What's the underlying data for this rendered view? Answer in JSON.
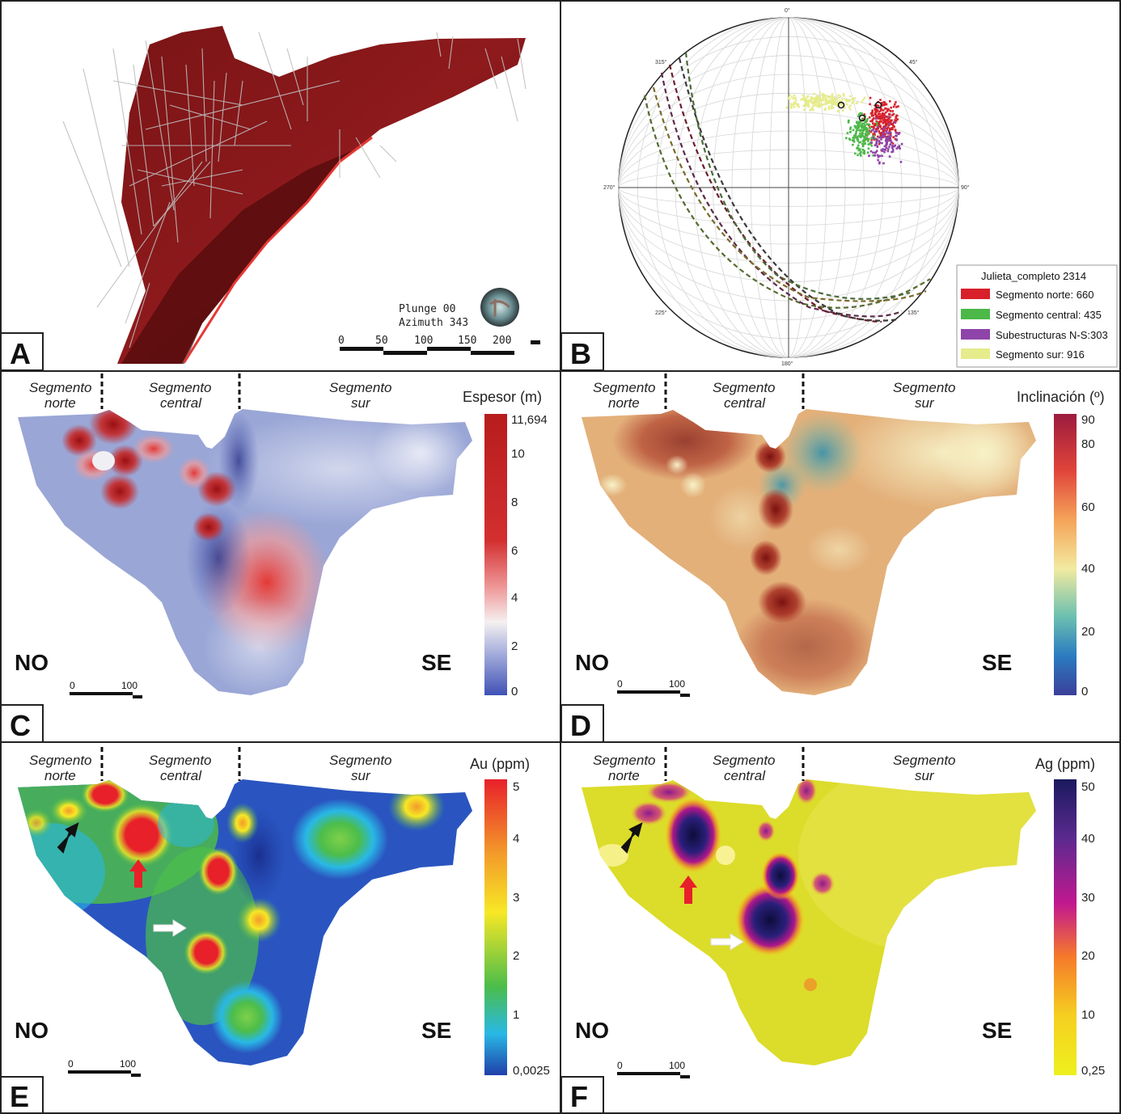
{
  "panels": {
    "A": {
      "letter": "A",
      "plunge_label": "Plunge 00",
      "azimuth_label": "Azimuth 343",
      "scale_ticks": [
        "0",
        "50",
        "100",
        "150",
        "200"
      ]
    },
    "B": {
      "letter": "B",
      "compass": {
        "n": "0°",
        "ne": "45°",
        "e": "90°",
        "se": "135°",
        "s": "180°",
        "sw": "225°",
        "w": "270°",
        "nw": "315°"
      },
      "legend_title": "Julieta_completo 2314",
      "legend": [
        {
          "label": "Segmento norte: 660",
          "color": "#d7202a"
        },
        {
          "label": "Segmento central: 435",
          "color": "#4cb848"
        },
        {
          "label": "Subestructuras N-S:303",
          "color": "#8e44a8"
        },
        {
          "label": "Segmento sur: 916",
          "color": "#e6ec8c"
        }
      ]
    },
    "C": {
      "letter": "C",
      "segments": [
        "Segmento norte",
        "Segmento central",
        "Segmento sur"
      ],
      "left_dir": "NO",
      "right_dir": "SE",
      "scale_ticks": [
        "0",
        "100"
      ],
      "colorbar_title": "Espesor (m)",
      "colorbar_ticks": [
        "11,694",
        "10",
        "8",
        "6",
        "4",
        "2",
        "0"
      ],
      "colorbar_colors": [
        "#b71c1c",
        "#d32f2f",
        "#ef9a9a",
        "#f5f0f0",
        "#9fa8da",
        "#3f51b5"
      ]
    },
    "D": {
      "letter": "D",
      "segments": [
        "Segmento norte",
        "Segmento central",
        "Segmento sur"
      ],
      "left_dir": "NO",
      "right_dir": "SE",
      "scale_ticks": [
        "0",
        "100"
      ],
      "colorbar_title": "Inclinación (º)",
      "colorbar_ticks": [
        "90",
        "80",
        "60",
        "40",
        "20",
        "0"
      ],
      "colorbar_colors": [
        "#9c1b3e",
        "#e0443a",
        "#f5a55a",
        "#f2eaa0",
        "#6cc0b0",
        "#2b7bc0",
        "#3a3f9a"
      ]
    },
    "E": {
      "letter": "E",
      "segments": [
        "Segmento norte",
        "Segmento central",
        "Segmento sur"
      ],
      "left_dir": "NO",
      "right_dir": "SE",
      "scale_ticks": [
        "0",
        "100"
      ],
      "colorbar_title": "Au (ppm)",
      "colorbar_ticks": [
        "5",
        "4",
        "3",
        "2",
        "1",
        "0,0025"
      ],
      "colorbar_colors": [
        "#e8202a",
        "#f39a2a",
        "#f7e825",
        "#4cbd4a",
        "#29b8e6",
        "#1f3fa8"
      ]
    },
    "F": {
      "letter": "F",
      "segments": [
        "Segmento norte",
        "Segmento central",
        "Segmento sur"
      ],
      "left_dir": "NO",
      "right_dir": "SE",
      "scale_ticks": [
        "0",
        "100"
      ],
      "colorbar_title": "Ag (ppm)",
      "colorbar_ticks": [
        "50",
        "40",
        "30",
        "20",
        "10",
        "0,25"
      ],
      "colorbar_colors": [
        "#1a1a5e",
        "#5b2a8f",
        "#c2188f",
        "#f57a2a",
        "#f5d020",
        "#eef01e"
      ]
    }
  }
}
